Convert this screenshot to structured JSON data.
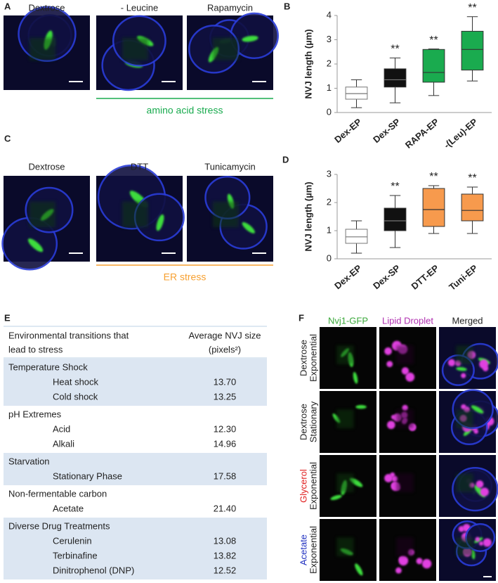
{
  "panel_labels": [
    "A",
    "B",
    "C",
    "D",
    "E",
    "F"
  ],
  "panel_a": {
    "conditions": [
      "Dextrose",
      "- Leucine",
      "Rapamycin"
    ],
    "group_label": "amino acid stress"
  },
  "panel_c": {
    "conditions": [
      "Dextrose",
      "DTT",
      "Tunicamycin"
    ],
    "group_label": "ER stress"
  },
  "chart_data": [
    {
      "type": "box",
      "ylabel": "NVJ length (µm)",
      "categories": [
        "Dex-EP",
        "Dex-SP",
        "RAPA-EP",
        "-(Leu)-EP"
      ],
      "boxes": [
        {
          "min": 0.2,
          "q1": 0.55,
          "median": 0.78,
          "q3": 1.05,
          "max": 1.35,
          "color": "#ffffff"
        },
        {
          "min": 0.4,
          "q1": 1.05,
          "median": 1.35,
          "q3": 1.8,
          "max": 2.25,
          "color": "#111111"
        },
        {
          "min": 0.7,
          "q1": 1.25,
          "median": 1.65,
          "q3": 2.6,
          "max": 2.62,
          "color": "#1aab4f"
        },
        {
          "min": 1.3,
          "q1": 1.75,
          "median": 2.6,
          "q3": 3.35,
          "max": 3.95,
          "color": "#1aab4f"
        }
      ],
      "annotations": [
        null,
        "**",
        "**",
        "**"
      ],
      "ylim": [
        0,
        4
      ],
      "yticks": [
        0,
        1,
        2,
        3,
        4
      ]
    },
    {
      "type": "box",
      "ylabel": "NVJ length (µm)",
      "categories": [
        "Dex-EP",
        "Dex-SP",
        "DTT-EP",
        "Tuni-EP"
      ],
      "boxes": [
        {
          "min": 0.2,
          "q1": 0.55,
          "median": 0.78,
          "q3": 1.05,
          "max": 1.35,
          "color": "#ffffff"
        },
        {
          "min": 0.4,
          "q1": 1.0,
          "median": 1.35,
          "q3": 1.8,
          "max": 2.25,
          "color": "#111111"
        },
        {
          "min": 0.9,
          "q1": 1.15,
          "median": 1.75,
          "q3": 2.5,
          "max": 2.6,
          "color": "#f79a4d"
        },
        {
          "min": 0.9,
          "q1": 1.35,
          "median": 1.72,
          "q3": 2.3,
          "max": 2.55,
          "color": "#f79a4d"
        }
      ],
      "annotations": [
        null,
        "**",
        "**",
        "**"
      ],
      "ylim": [
        0,
        3
      ],
      "yticks": [
        0,
        1,
        2,
        3
      ]
    }
  ],
  "table": {
    "header": [
      [
        "Environmental transitions that",
        "lead to stress"
      ],
      [
        "Average NVJ size",
        "(pixels²)"
      ]
    ],
    "groups": [
      {
        "name": "Temperature Shock",
        "rows": [
          [
            "Heat shock",
            "13.70"
          ],
          [
            "Cold shock",
            "13.25"
          ]
        ]
      },
      {
        "name": "pH Extremes",
        "rows": [
          [
            "Acid",
            "12.30"
          ],
          [
            "Alkali",
            "14.96"
          ]
        ]
      },
      {
        "name": "Starvation",
        "rows": [
          [
            "Stationary Phase",
            "17.58"
          ]
        ]
      },
      {
        "name": "Non-fermentable carbon",
        "rows": [
          [
            "Acetate",
            "21.40"
          ]
        ]
      },
      {
        "name": "Diverse Drug Treatments",
        "rows": [
          [
            "Cerulenin",
            "13.08"
          ],
          [
            "Terbinafine",
            "13.82"
          ],
          [
            "Dinitrophenol (DNP)",
            "12.52"
          ]
        ]
      }
    ]
  },
  "panel_f": {
    "columns": [
      "Nvj1-GFP",
      "Lipid Droplet",
      "Merged"
    ],
    "rows": [
      [
        "Dextrose",
        "Exponential"
      ],
      [
        "Dextrose",
        "Stationary"
      ],
      [
        "Glycerol",
        "Exponential"
      ],
      [
        "Acetate",
        "Exponential"
      ]
    ]
  }
}
